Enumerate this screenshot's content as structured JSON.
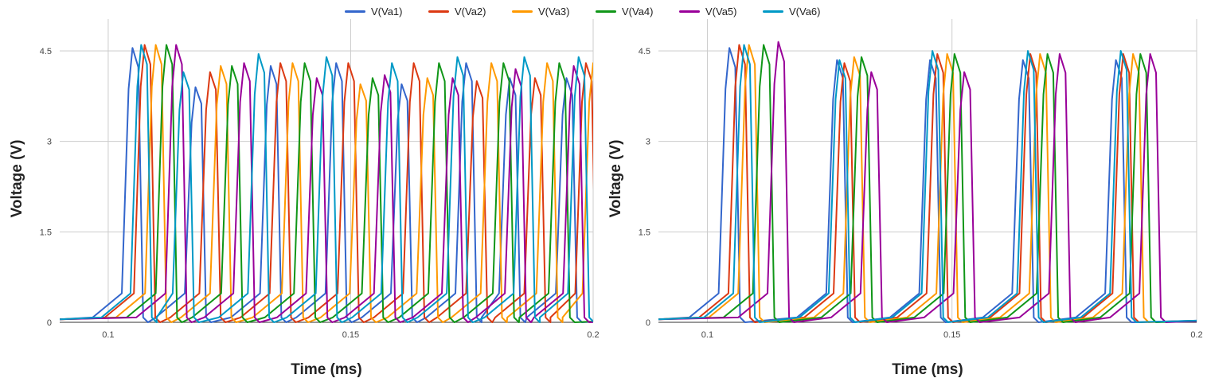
{
  "colors": {
    "grid": "#cccccc",
    "axis": "#333333"
  },
  "legend": [
    {
      "name": "V(Va1)",
      "color": "#3366cc"
    },
    {
      "name": "V(Va2)",
      "color": "#dc3912"
    },
    {
      "name": "V(Va3)",
      "color": "#ff9900"
    },
    {
      "name": "V(Va4)",
      "color": "#109618"
    },
    {
      "name": "V(Va5)",
      "color": "#990099"
    },
    {
      "name": "V(Va6)",
      "color": "#0099c6"
    }
  ],
  "chart_data": [
    {
      "type": "line",
      "title": "",
      "xlabel": "Time (ms)",
      "ylabel": "Voltage (V)",
      "xlim": [
        0.09,
        0.2
      ],
      "ylim": [
        0,
        4.5
      ],
      "xticks": [
        "0.1",
        "0.15",
        "0.2"
      ],
      "yticks": [
        "0",
        "1.5",
        "3",
        "4.5"
      ],
      "grid": true,
      "legend_position": "top",
      "baseline": {
        "Va1": 0.36,
        "Va2": 0.12,
        "Va3": 0.02,
        "Va4": 0.02,
        "Va5": 0.0,
        "Va6": 0.16
      },
      "series": [
        {
          "name": "V(Va1)",
          "spikes": [
            [
              0.105,
              4.55
            ],
            [
              0.118,
              3.9
            ],
            [
              0.1335,
              4.25
            ],
            [
              0.147,
              4.3
            ],
            [
              0.1605,
              3.95
            ],
            [
              0.1738,
              4.3
            ],
            [
              0.1828,
              4.05
            ],
            [
              0.1945,
              4.05
            ]
          ]
        },
        {
          "name": "V(Va2)",
          "spikes": [
            [
              0.1075,
              4.6
            ],
            [
              0.121,
              4.15
            ],
            [
              0.1355,
              4.3
            ],
            [
              0.1495,
              4.3
            ],
            [
              0.163,
              4.3
            ],
            [
              0.176,
              4.0
            ],
            [
              0.188,
              4.05
            ],
            [
              0.1985,
              4.3
            ]
          ]
        },
        {
          "name": "V(Va3)",
          "spikes": [
            [
              0.1098,
              4.6
            ],
            [
              0.1232,
              4.25
            ],
            [
              0.138,
              4.3
            ],
            [
              0.152,
              3.95
            ],
            [
              0.1658,
              4.05
            ],
            [
              0.179,
              4.3
            ],
            [
              0.1905,
              4.3
            ],
            [
              0.2,
              4.3
            ]
          ]
        },
        {
          "name": "V(Va4)",
          "spikes": [
            [
              0.112,
              4.6
            ],
            [
              0.1255,
              4.25
            ],
            [
              0.1405,
              4.3
            ],
            [
              0.1545,
              4.05
            ],
            [
              0.1682,
              4.3
            ],
            [
              0.1815,
              4.3
            ],
            [
              0.193,
              4.3
            ]
          ]
        },
        {
          "name": "V(Va5)",
          "spikes": [
            [
              0.114,
              4.6
            ],
            [
              0.128,
              4.3
            ],
            [
              0.143,
              4.05
            ],
            [
              0.157,
              4.1
            ],
            [
              0.171,
              4.05
            ],
            [
              0.184,
              4.2
            ],
            [
              0.196,
              4.25
            ]
          ]
        },
        {
          "name": "V(Va6)",
          "spikes": [
            [
              0.1068,
              4.6
            ],
            [
              0.1155,
              4.15
            ],
            [
              0.131,
              4.45
            ],
            [
              0.145,
              4.4
            ],
            [
              0.1585,
              4.3
            ],
            [
              0.172,
              4.4
            ],
            [
              0.1858,
              4.4
            ],
            [
              0.197,
              4.4
            ]
          ]
        }
      ]
    },
    {
      "type": "line",
      "title": "",
      "xlabel": "Time (ms)",
      "ylabel": "Voltage (V)",
      "xlim": [
        0.09,
        0.2
      ],
      "ylim": [
        0,
        4.5
      ],
      "xticks": [
        "0.1",
        "0.15",
        "0.2"
      ],
      "yticks": [
        "0",
        "1.5",
        "3",
        "4.5"
      ],
      "grid": true,
      "legend_position": "top",
      "baseline": {
        "Va1": 0.36,
        "Va2": 0.12,
        "Va3": 0.02,
        "Va4": 0.02,
        "Va5": 0.0,
        "Va6": 0.16
      },
      "series": [
        {
          "name": "V(Va1)",
          "spikes": [
            [
              0.1045,
              4.55
            ],
            [
              0.1265,
              4.35
            ],
            [
              0.1455,
              4.35
            ],
            [
              0.1645,
              4.35
            ],
            [
              0.1835,
              4.35
            ]
          ]
        },
        {
          "name": "V(Va2)",
          "spikes": [
            [
              0.1065,
              4.6
            ],
            [
              0.128,
              4.3
            ],
            [
              0.147,
              4.45
            ],
            [
              0.166,
              4.45
            ],
            [
              0.185,
              4.45
            ]
          ]
        },
        {
          "name": "V(Va3)",
          "spikes": [
            [
              0.1085,
              4.6
            ],
            [
              0.13,
              4.4
            ],
            [
              0.149,
              4.45
            ],
            [
              0.168,
              4.45
            ],
            [
              0.187,
              4.45
            ]
          ]
        },
        {
          "name": "V(Va4)",
          "spikes": [
            [
              0.1115,
              4.6
            ],
            [
              0.1315,
              4.4
            ],
            [
              0.1505,
              4.45
            ],
            [
              0.1695,
              4.45
            ],
            [
              0.1885,
              4.45
            ]
          ]
        },
        {
          "name": "V(Va5)",
          "spikes": [
            [
              0.1145,
              4.65
            ],
            [
              0.1335,
              4.15
            ],
            [
              0.1525,
              4.15
            ],
            [
              0.172,
              4.45
            ],
            [
              0.1905,
              4.45
            ]
          ]
        },
        {
          "name": "V(Va6)",
          "spikes": [
            [
              0.1075,
              4.6
            ],
            [
              0.127,
              4.35
            ],
            [
              0.146,
              4.5
            ],
            [
              0.1655,
              4.5
            ],
            [
              0.1845,
              4.5
            ]
          ]
        }
      ]
    }
  ]
}
